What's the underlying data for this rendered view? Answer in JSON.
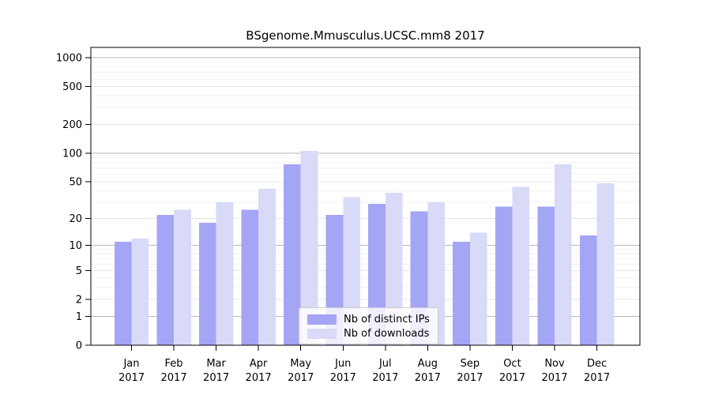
{
  "title": "BSgenome.Mmusculus.UCSC.mm8 2017",
  "chart_data": {
    "type": "bar",
    "title": "BSgenome.Mmusculus.UCSC.mm8 2017",
    "categories": [
      "Jan 2017",
      "Feb 2017",
      "Mar 2017",
      "Apr 2017",
      "May 2017",
      "Jun 2017",
      "Jul 2017",
      "Aug 2017",
      "Sep 2017",
      "Oct 2017",
      "Nov 2017",
      "Dec 2017"
    ],
    "months": [
      "Jan",
      "Feb",
      "Mar",
      "Apr",
      "May",
      "Jun",
      "Jul",
      "Aug",
      "Sep",
      "Oct",
      "Nov",
      "Dec"
    ],
    "year": "2017",
    "series": [
      {
        "name": "Nb of distinct IPs",
        "color": "#a5a5f6",
        "values": [
          11,
          22,
          18,
          25,
          76,
          22,
          29,
          24,
          11,
          27,
          27,
          13
        ]
      },
      {
        "name": "Nb of downloads",
        "color": "#d9d9f8",
        "values": [
          12,
          25,
          30,
          42,
          105,
          34,
          38,
          30,
          14,
          44,
          76,
          48
        ]
      }
    ],
    "yscale": "log1p",
    "ylim": [
      0,
      1000
    ],
    "yticks": [
      0,
      1,
      2,
      5,
      10,
      20,
      50,
      100,
      200,
      500,
      1000
    ],
    "y_minor_gridlines": [
      3,
      4,
      6,
      7,
      8,
      9,
      30,
      40,
      60,
      70,
      80,
      90,
      300,
      400,
      600,
      700,
      800,
      900
    ],
    "y_emphasized_gridlines": [
      1,
      10,
      100,
      1000
    ],
    "grid": true,
    "legend_position": "bottom-center",
    "colors": {
      "axis": "#000000",
      "grid_emphasis": "rgba(0,0,0,0.28)",
      "grid_major": "rgba(0,0,0,0.10)",
      "grid_minor": "rgba(0,0,0,0.05)",
      "text": "#000000"
    }
  }
}
